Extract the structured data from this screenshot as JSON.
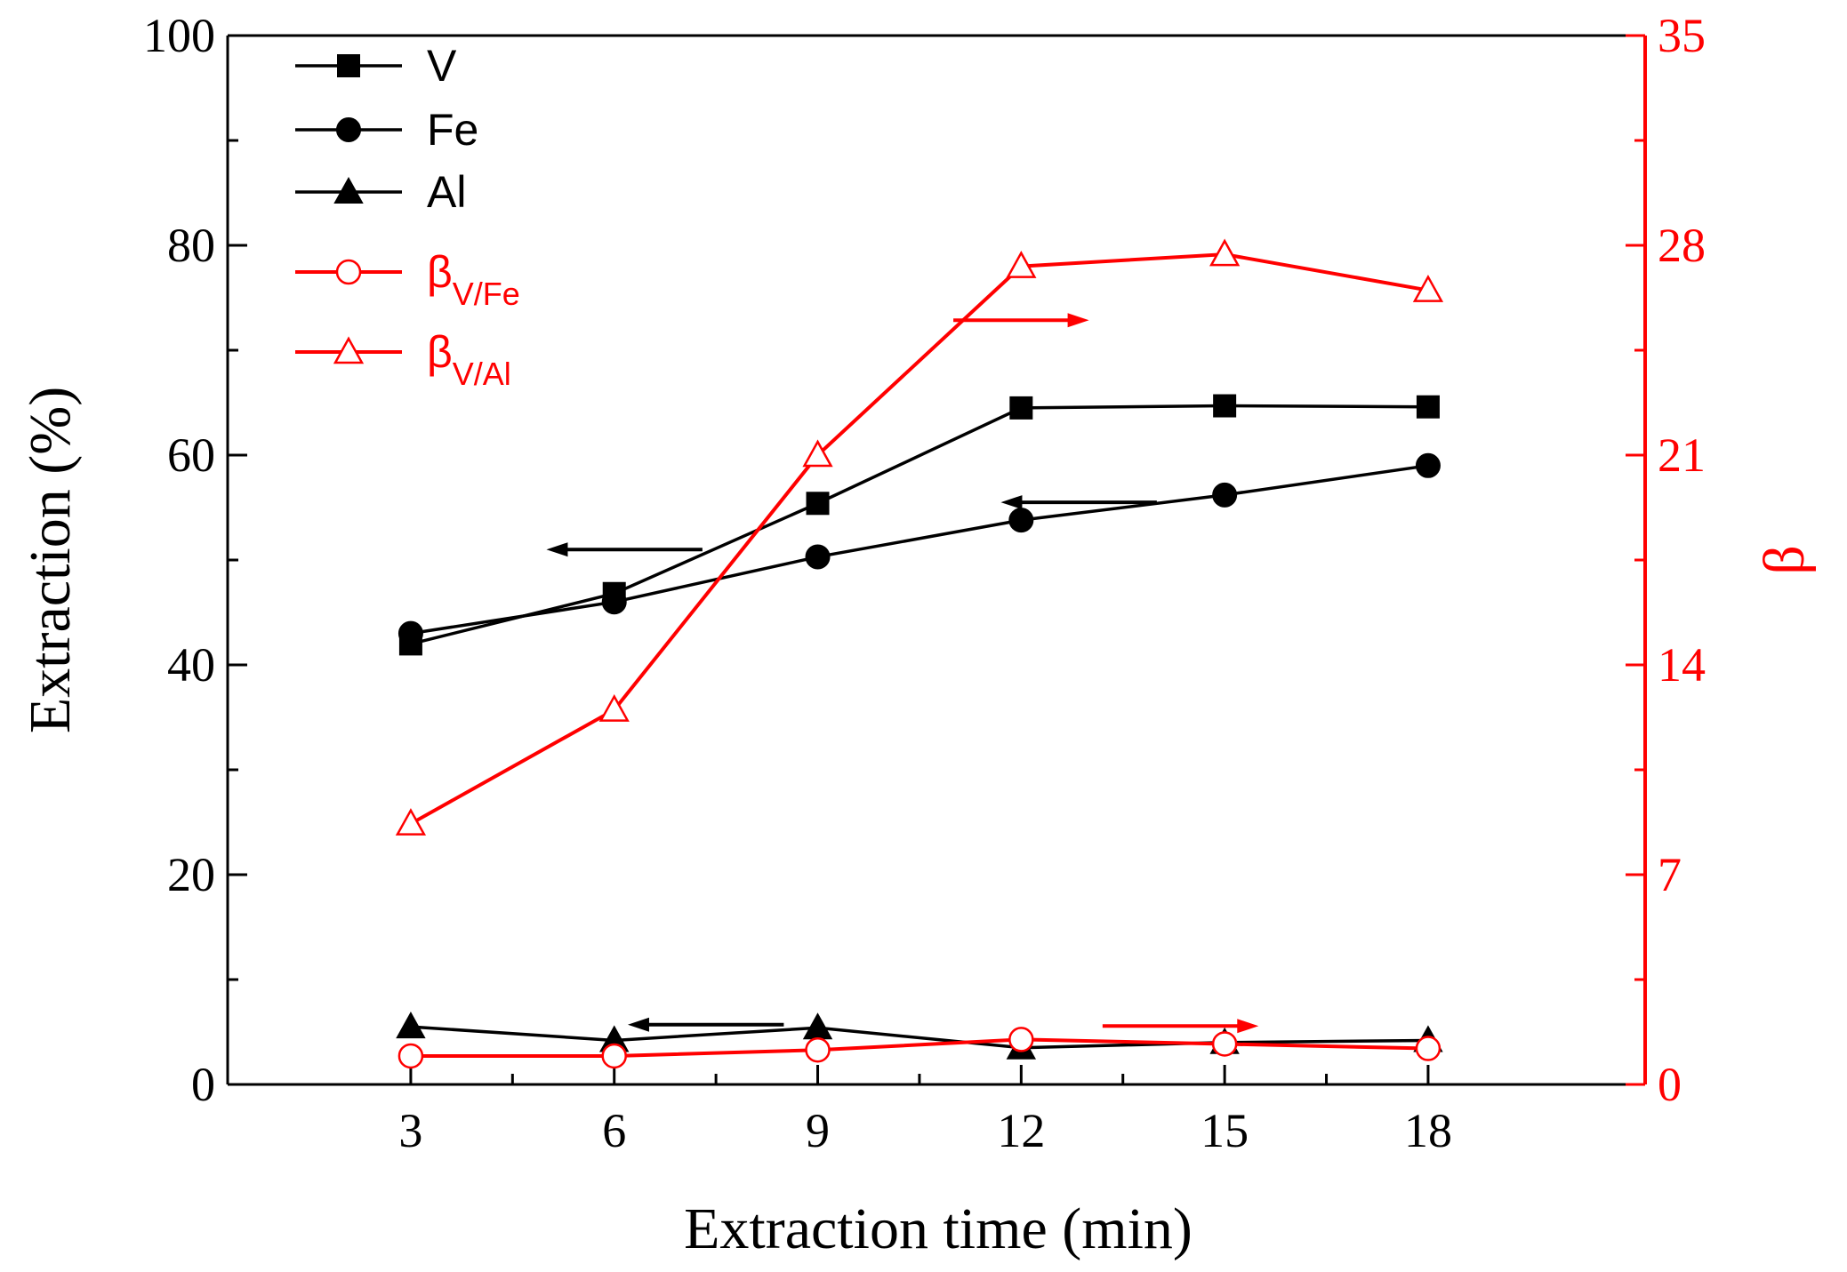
{
  "chart_data": {
    "type": "line",
    "xlabel": "Extraction time (min)",
    "ylabel": "Extraction (%)",
    "y2label": "β",
    "x": [
      3,
      6,
      9,
      12,
      15,
      18
    ],
    "xticks": [
      3,
      6,
      9,
      12,
      15,
      18
    ],
    "xlim": [
      0.3,
      21.2
    ],
    "ylim": [
      0,
      100
    ],
    "y2lim": [
      0,
      35
    ],
    "yticks": [
      0,
      20,
      40,
      60,
      80,
      100
    ],
    "y2ticks": [
      0,
      7,
      14,
      21,
      28,
      35
    ],
    "grid": false,
    "legend_position": "top-left",
    "colors": {
      "left_axis": "#000000",
      "right_axis": "#ff0000"
    },
    "series": [
      {
        "name": "V",
        "axis": "left",
        "marker": "square",
        "filled": true,
        "color": "#000000",
        "values": [
          42.0,
          46.8,
          55.4,
          64.5,
          64.7,
          64.6
        ]
      },
      {
        "name": "Fe",
        "axis": "left",
        "marker": "circle",
        "filled": true,
        "color": "#000000",
        "values": [
          43.0,
          46.0,
          50.3,
          53.8,
          56.2,
          59.0
        ]
      },
      {
        "name": "Al",
        "axis": "left",
        "marker": "triangle",
        "filled": true,
        "color": "#000000",
        "values": [
          5.5,
          4.2,
          5.4,
          3.5,
          4.0,
          4.2
        ]
      },
      {
        "name": "β",
        "sub": "V/Fe",
        "axis": "right",
        "marker": "circle",
        "filled": false,
        "color": "#ff0000",
        "values": [
          0.95,
          0.95,
          1.15,
          1.5,
          1.35,
          1.2
        ]
      },
      {
        "name": "β",
        "sub": "V/Al",
        "axis": "right",
        "marker": "triangle",
        "filled": false,
        "color": "#ff0000",
        "values": [
          8.7,
          12.5,
          21.0,
          27.3,
          27.7,
          26.5
        ]
      }
    ],
    "annotations": [
      {
        "type": "arrow",
        "direction": "left",
        "axis": "left",
        "x_from": 7.3,
        "x_to": 5.0,
        "y": 51,
        "color": "#000000"
      },
      {
        "type": "arrow",
        "direction": "left",
        "axis": "left",
        "x_from": 14.0,
        "x_to": 11.7,
        "y": 55.5,
        "color": "#000000"
      },
      {
        "type": "arrow",
        "direction": "left",
        "axis": "left",
        "x_from": 8.5,
        "x_to": 6.2,
        "y": 5.7,
        "color": "#000000"
      },
      {
        "type": "arrow",
        "direction": "right",
        "axis": "right",
        "x_from": 11.0,
        "x_to": 13.0,
        "y": 25.5,
        "color": "#ff0000"
      },
      {
        "type": "arrow",
        "direction": "right",
        "axis": "right",
        "x_from": 13.2,
        "x_to": 15.5,
        "y": 1.95,
        "color": "#ff0000"
      }
    ]
  }
}
